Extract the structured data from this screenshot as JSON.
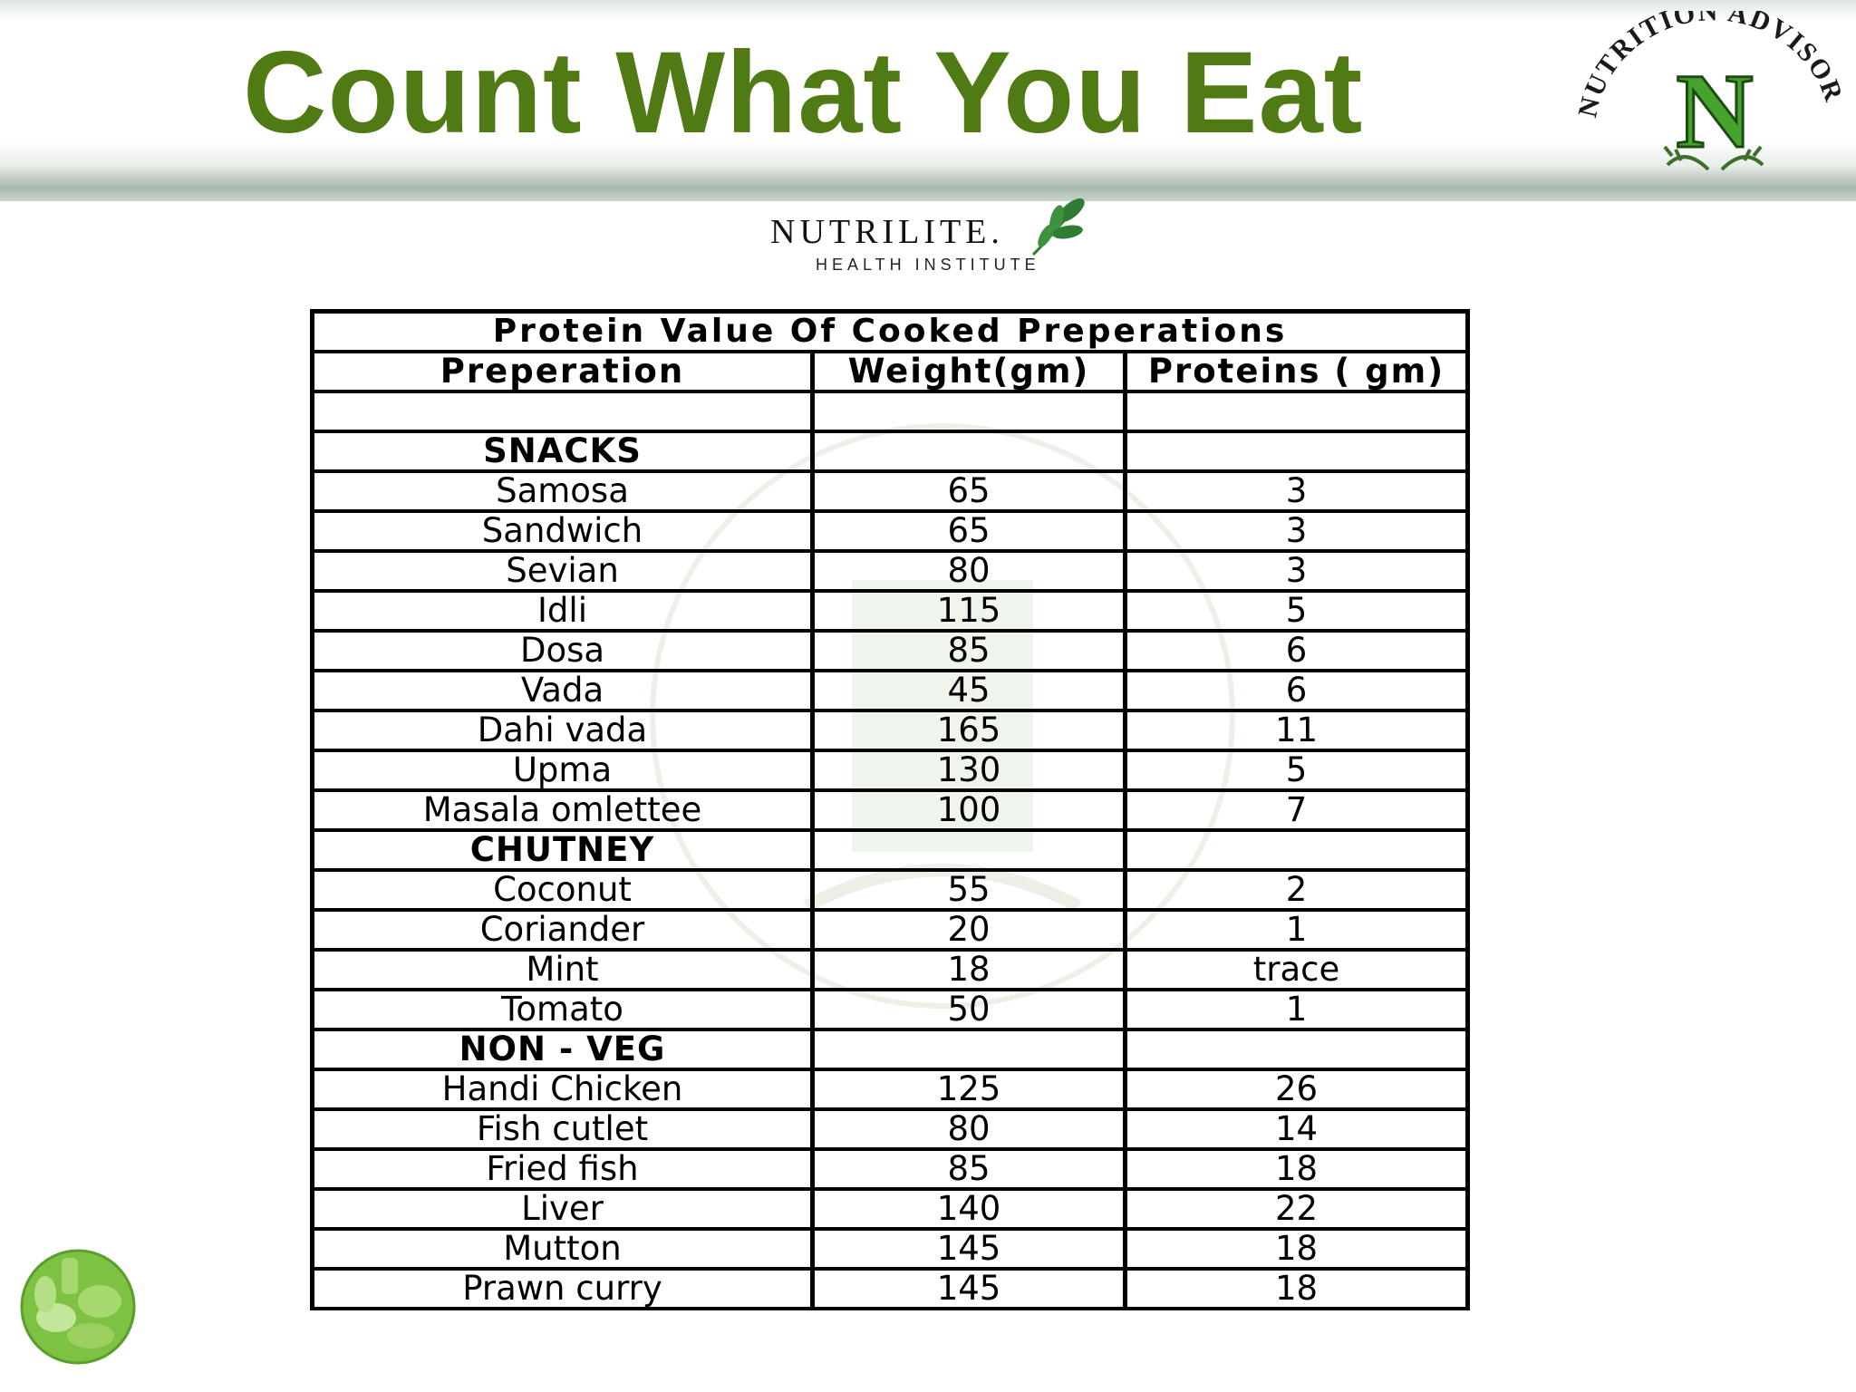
{
  "title": "Count What You Eat",
  "seal": {
    "text": "NUTRITION ADVISOR",
    "letter": "N"
  },
  "brand": {
    "name": "NUTRILITE.",
    "subtitle": "HEALTH INSTITUTE"
  },
  "table": {
    "caption": "Protein Value Of Cooked Preperations",
    "headers": [
      "Preperation",
      "Weight(gm)",
      "Proteins ( gm)"
    ],
    "rows": [
      [
        "",
        "",
        ""
      ],
      [
        "SNACKS",
        "",
        ""
      ],
      [
        "Samosa",
        "65",
        "3"
      ],
      [
        "Sandwich",
        "65",
        "3"
      ],
      [
        "Sevian",
        "80",
        "3"
      ],
      [
        "Idli",
        "115",
        "5"
      ],
      [
        "Dosa",
        "85",
        "6"
      ],
      [
        "Vada",
        "45",
        "6"
      ],
      [
        "Dahi vada",
        "165",
        "11"
      ],
      [
        "Upma",
        "130",
        "5"
      ],
      [
        "Masala omlettee",
        "100",
        "7"
      ],
      [
        "CHUTNEY",
        "",
        ""
      ],
      [
        "Coconut",
        "55",
        "2"
      ],
      [
        "Coriander",
        "20",
        "1"
      ],
      [
        "Mint",
        "18",
        "trace"
      ],
      [
        "Tomato",
        "50",
        "1"
      ],
      [
        "NON - VEG",
        "",
        ""
      ],
      [
        "Handi Chicken",
        "125",
        "26"
      ],
      [
        "Fish cutlet",
        "80",
        "14"
      ],
      [
        "Fried fish",
        "85",
        "18"
      ],
      [
        "Liver",
        "140",
        "22"
      ],
      [
        "Mutton",
        "145",
        "18"
      ],
      [
        "Prawn curry",
        "145",
        "18"
      ]
    ]
  },
  "colors": {
    "title": "#4f7a14",
    "seal_green": "#3f8f2a",
    "leaf": "#2e7d32"
  },
  "icons": [
    "nutrition-advisor-seal-icon",
    "nutrilite-leaf-icon",
    "vegetables-icon"
  ]
}
